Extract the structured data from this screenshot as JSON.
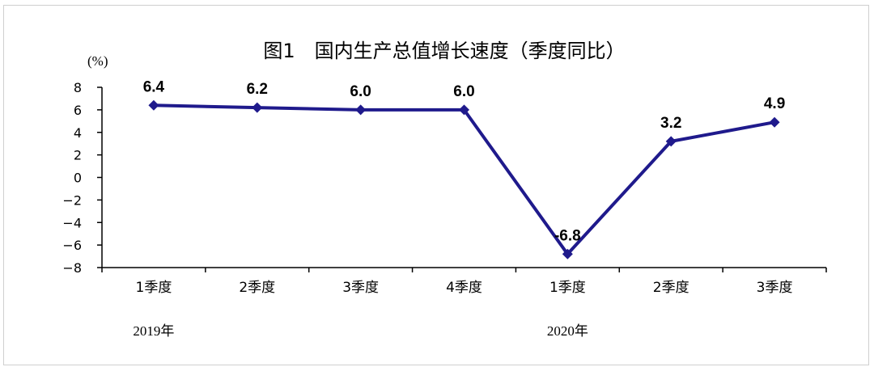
{
  "chart_data": {
    "type": "line",
    "title": "图1　国内生产总值增长速度（季度同比）",
    "ylabel": "(%)",
    "ylim": [
      -8,
      8
    ],
    "yticks": [
      8,
      6,
      4,
      2,
      0,
      -2,
      -4,
      -6,
      -8
    ],
    "ytick_labels": [
      "8",
      "6",
      "4",
      "2",
      "0",
      "−2",
      "−4",
      "−6",
      "−8"
    ],
    "categories": [
      "1季度",
      "2季度",
      "3季度",
      "4季度",
      "1季度",
      "2季度",
      "3季度"
    ],
    "year_groups": [
      {
        "label": "2019年",
        "start_index": 0
      },
      {
        "label": "2020年",
        "start_index": 4
      }
    ],
    "series": [
      {
        "values": [
          6.4,
          6.2,
          6.0,
          6.0,
          -6.8,
          3.2,
          4.9
        ],
        "data_labels": [
          "6.4",
          "6.2",
          "6.0",
          "6.0",
          "-6.8",
          "3.2",
          "4.9"
        ],
        "color": "#1f1a8c",
        "marker": "diamond"
      }
    ],
    "grid": false,
    "legend": "none"
  }
}
